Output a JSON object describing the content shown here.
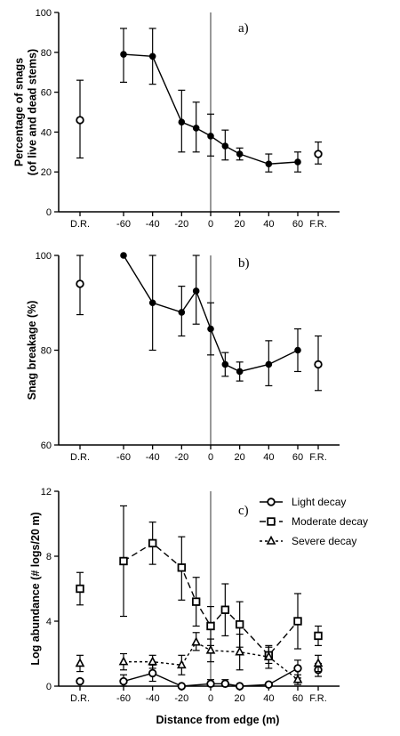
{
  "figure": {
    "xlabel": "Distance from edge (m)"
  },
  "chart_data": [
    {
      "type": "line",
      "panel_label": "a)",
      "ylabel_lines": [
        "Percentage of snags",
        "(of live and dead stems)"
      ],
      "ylim": [
        0,
        100
      ],
      "yticks": [
        0,
        20,
        40,
        60,
        80,
        100
      ],
      "x_ticks": [
        "D.R.",
        "-60",
        "-40",
        "-20",
        "0",
        "20",
        "40",
        "60",
        "F.R."
      ],
      "reference_line_x": 0,
      "series": [
        {
          "marker": "filled-circle",
          "line": "solid",
          "points": [
            {
              "x": -60,
              "y": 79,
              "err": [
                65,
                92
              ]
            },
            {
              "x": -40,
              "y": 78,
              "err": [
                64,
                92
              ]
            },
            {
              "x": -20,
              "y": 45,
              "err": [
                30,
                61
              ]
            },
            {
              "x": -10,
              "y": 42,
              "err": [
                30,
                55
              ]
            },
            {
              "x": 0,
              "y": 38,
              "err": [
                28,
                49
              ]
            },
            {
              "x": 10,
              "y": 33,
              "err": [
                26,
                41
              ]
            },
            {
              "x": 20,
              "y": 29,
              "err": [
                26,
                32
              ]
            },
            {
              "x": 40,
              "y": 24,
              "err": [
                20,
                29
              ]
            },
            {
              "x": 60,
              "y": 25,
              "err": [
                20,
                30
              ]
            }
          ],
          "references": [
            {
              "x": "D.R.",
              "y": 46,
              "err": [
                27,
                66
              ]
            },
            {
              "x": "F.R.",
              "y": 29,
              "err": [
                24,
                35
              ]
            }
          ]
        }
      ]
    },
    {
      "type": "line",
      "panel_label": "b)",
      "ylabel_lines": [
        "Snag breakage (%)"
      ],
      "ylim": [
        60,
        100
      ],
      "yticks": [
        60,
        80,
        100
      ],
      "x_ticks": [
        "D.R.",
        "-60",
        "-40",
        "-20",
        "0",
        "20",
        "40",
        "60",
        "F.R."
      ],
      "reference_line_x": 0,
      "series": [
        {
          "marker": "filled-circle",
          "line": "solid",
          "points": [
            {
              "x": -60,
              "y": 100
            },
            {
              "x": -40,
              "y": 90,
              "err": [
                80,
                100
              ]
            },
            {
              "x": -20,
              "y": 88,
              "err": [
                83,
                93.5
              ]
            },
            {
              "x": -10,
              "y": 92.5,
              "err": [
                85.5,
                100
              ]
            },
            {
              "x": 0,
              "y": 84.5,
              "err": [
                79,
                90
              ]
            },
            {
              "x": 10,
              "y": 77,
              "err": [
                74.5,
                79.5
              ]
            },
            {
              "x": 20,
              "y": 75.5,
              "err": [
                73.5,
                77.5
              ]
            },
            {
              "x": 40,
              "y": 77,
              "err": [
                72.5,
                82
              ]
            },
            {
              "x": 60,
              "y": 80,
              "err": [
                75.5,
                84.5
              ]
            }
          ],
          "references": [
            {
              "x": "D.R.",
              "y": 94,
              "err": [
                87.5,
                100
              ]
            },
            {
              "x": "F.R.",
              "y": 77,
              "err": [
                71.5,
                83
              ]
            }
          ]
        }
      ]
    },
    {
      "type": "line",
      "panel_label": "c)",
      "ylabel_lines": [
        "Log abundance (# logs/20 m)"
      ],
      "ylim": [
        0,
        12
      ],
      "yticks": [
        0,
        4,
        8,
        12
      ],
      "x_ticks": [
        "D.R.",
        "-60",
        "-40",
        "-20",
        "0",
        "20",
        "40",
        "60",
        "F.R."
      ],
      "reference_line_x": 0,
      "series": [
        {
          "name": "Light decay",
          "marker": "open-circle",
          "line": "solid",
          "points": [
            {
              "x": -60,
              "y": 0.3,
              "err": [
                0,
                0.7
              ]
            },
            {
              "x": -40,
              "y": 0.8,
              "err": [
                0.3,
                1.3
              ]
            },
            {
              "x": -20,
              "y": 0.0
            },
            {
              "x": 0,
              "y": 0.15,
              "err": [
                0,
                0.4
              ]
            },
            {
              "x": 10,
              "y": 0.15,
              "err": [
                0,
                0.4
              ]
            },
            {
              "x": 20,
              "y": 0.0
            },
            {
              "x": 40,
              "y": 0.1
            },
            {
              "x": 60,
              "y": 1.1,
              "err": [
                0.5,
                1.6
              ]
            }
          ],
          "references": [
            {
              "x": "D.R.",
              "y": 0.3
            },
            {
              "x": "F.R.",
              "y": 1.0,
              "err": [
                0.6,
                1.4
              ]
            }
          ]
        },
        {
          "name": "Moderate decay",
          "marker": "open-square",
          "line": "long-dash",
          "points": [
            {
              "x": -60,
              "y": 7.7,
              "err": [
                4.3,
                11.1
              ]
            },
            {
              "x": -40,
              "y": 8.8,
              "err": [
                7.5,
                10.1
              ]
            },
            {
              "x": -20,
              "y": 7.3,
              "err": [
                5.3,
                9.2
              ]
            },
            {
              "x": -10,
              "y": 5.2,
              "err": [
                3.7,
                6.7
              ]
            },
            {
              "x": 0,
              "y": 3.7,
              "err": [
                2.5,
                4.9
              ]
            },
            {
              "x": 10,
              "y": 4.7,
              "err": [
                3.1,
                6.3
              ]
            },
            {
              "x": 20,
              "y": 3.8,
              "err": [
                2.4,
                5.2
              ]
            },
            {
              "x": 40,
              "y": 1.9,
              "err": [
                1.4,
                2.4
              ]
            },
            {
              "x": 60,
              "y": 4.0,
              "err": [
                2.3,
                5.7
              ]
            }
          ],
          "references": [
            {
              "x": "D.R.",
              "y": 6.0,
              "err": [
                5.0,
                7.0
              ]
            },
            {
              "x": "F.R.",
              "y": 3.1,
              "err": [
                2.5,
                3.7
              ]
            }
          ]
        },
        {
          "name": "Severe decay",
          "marker": "open-triangle",
          "line": "short-dash",
          "points": [
            {
              "x": -60,
              "y": 1.5,
              "err": [
                1.0,
                2.0
              ]
            },
            {
              "x": -40,
              "y": 1.5,
              "err": [
                1.1,
                1.9
              ]
            },
            {
              "x": -20,
              "y": 1.3,
              "err": [
                0.7,
                1.9
              ]
            },
            {
              "x": -10,
              "y": 2.7,
              "err": [
                2.2,
                3.3
              ]
            },
            {
              "x": 0,
              "y": 2.2,
              "err": [
                1.5,
                2.9
              ]
            },
            {
              "x": 20,
              "y": 2.1,
              "err": [
                1.0,
                3.2
              ]
            },
            {
              "x": 40,
              "y": 1.8,
              "err": [
                1.1,
                2.5
              ]
            },
            {
              "x": 60,
              "y": 0.4,
              "err": [
                0.1,
                0.7
              ]
            }
          ],
          "references": [
            {
              "x": "D.R.",
              "y": 1.4,
              "err": [
                0.9,
                1.9
              ]
            },
            {
              "x": "F.R.",
              "y": 1.4,
              "err": [
                0.9,
                1.9
              ]
            }
          ]
        }
      ]
    }
  ]
}
